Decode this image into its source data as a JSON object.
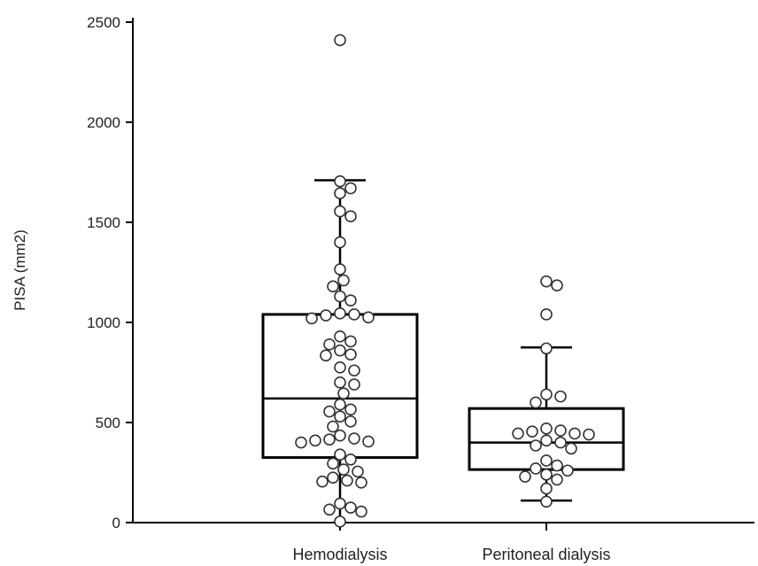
{
  "chart_data": {
    "type": "box",
    "title": "",
    "xlabel": "",
    "ylabel": "PISA (mm2)",
    "ylim": [
      0,
      2500
    ],
    "yticks": [
      0,
      500,
      1000,
      1500,
      2000,
      2500
    ],
    "ytick_labels": [
      "0",
      "500",
      "1000",
      "1500",
      "2000",
      "2500"
    ],
    "grid": false,
    "legend": "none",
    "colors": {
      "box": "#000000",
      "point_fill": "#ffffff",
      "point_stroke": "#333333"
    },
    "categories": [
      "Hemodialysis",
      "Peritoneal dialysis"
    ],
    "boxes": [
      {
        "category": "Hemodialysis",
        "whisker_low": 0,
        "q1": 325,
        "median": 620,
        "q3": 1040,
        "whisker_high": 1710,
        "points": [
          2410,
          1705,
          1670,
          1645,
          1555,
          1530,
          1400,
          1265,
          1210,
          1180,
          1130,
          1110,
          1045,
          1040,
          1035,
          1025,
          1020,
          930,
          905,
          890,
          860,
          840,
          835,
          775,
          760,
          700,
          690,
          645,
          590,
          565,
          555,
          530,
          505,
          480,
          435,
          420,
          415,
          410,
          405,
          400,
          340,
          315,
          295,
          265,
          255,
          225,
          210,
          205,
          200,
          95,
          75,
          65,
          55,
          5
        ]
      },
      {
        "category": "Peritoneal dialysis",
        "whisker_low": 110,
        "q1": 265,
        "median": 400,
        "q3": 570,
        "whisker_high": 875,
        "points": [
          1205,
          1185,
          1040,
          870,
          640,
          630,
          600,
          470,
          460,
          455,
          445,
          445,
          440,
          410,
          400,
          385,
          370,
          310,
          285,
          270,
          260,
          240,
          230,
          215,
          170,
          105
        ]
      }
    ]
  }
}
